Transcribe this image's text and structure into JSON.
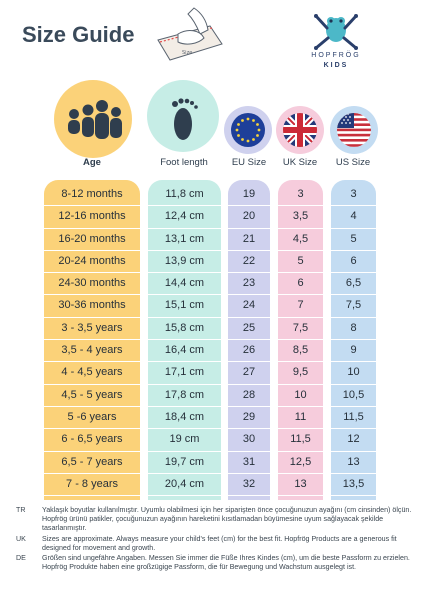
{
  "title": "Size Guide",
  "logo": {
    "brand": "HOPFRÖG",
    "sub": "KIDS"
  },
  "illustration": {
    "ruler_text": "Size"
  },
  "columns": {
    "age": "Age",
    "foot": "Foot length",
    "eu": "EU Size",
    "uk": "UK Size",
    "us": "US Size"
  },
  "colors": {
    "age": "#fbd279",
    "foot": "#c6ede6",
    "eu": "#cfd1ee",
    "uk": "#f6ccdc",
    "us": "#c3dcf2"
  },
  "rows": [
    {
      "age": "8-12 months",
      "foot": "11,8 cm",
      "eu": "19",
      "uk": "3",
      "us": "3"
    },
    {
      "age": "12-16 months",
      "foot": "12,4 cm",
      "eu": "20",
      "uk": "3,5",
      "us": "4"
    },
    {
      "age": "16-20 months",
      "foot": "13,1 cm",
      "eu": "21",
      "uk": "4,5",
      "us": "5"
    },
    {
      "age": "20-24 months",
      "foot": "13,9 cm",
      "eu": "22",
      "uk": "5",
      "us": "6"
    },
    {
      "age": "24-30 months",
      "foot": "14,4 cm",
      "eu": "23",
      "uk": "6",
      "us": "6,5"
    },
    {
      "age": "30-36 months",
      "foot": "15,1 cm",
      "eu": "24",
      "uk": "7",
      "us": "7,5"
    },
    {
      "age": "3 - 3,5 years",
      "foot": "15,8 cm",
      "eu": "25",
      "uk": "7,5",
      "us": "8"
    },
    {
      "age": "3,5 - 4 years",
      "foot": "16,4 cm",
      "eu": "26",
      "uk": "8,5",
      "us": "9"
    },
    {
      "age": "4 - 4,5 years",
      "foot": "17,1 cm",
      "eu": "27",
      "uk": "9,5",
      "us": "10"
    },
    {
      "age": "4,5 - 5 years",
      "foot": "17,8 cm",
      "eu": "28",
      "uk": "10",
      "us": "10,5"
    },
    {
      "age": "5 -6 years",
      "foot": "18,4 cm",
      "eu": "29",
      "uk": "11",
      "us": "11,5"
    },
    {
      "age": "6 - 6,5 years",
      "foot": "19 cm",
      "eu": "30",
      "uk": "11,5",
      "us": "12"
    },
    {
      "age": "6,5 - 7 years",
      "foot": "19,7 cm",
      "eu": "31",
      "uk": "12,5",
      "us": "13"
    },
    {
      "age": "7 - 8 years",
      "foot": "20,4 cm",
      "eu": "32",
      "uk": "13",
      "us": "13,5"
    }
  ],
  "notes": [
    {
      "code": "TR",
      "text": "Yaklaşık boyutlar kullanılmıştır. Uyumlu olabilmesi için her siparişten önce çocuğunuzun ayağını (cm cinsinden) ölçün. Hopfrög ürünü patikler, çocuğunuzun ayağının hareketini kısıtlamadan büyümesine uyum sağlayacak şekilde tasarlanmıştır."
    },
    {
      "code": "UK",
      "text": "Sizes are approximate. Always measure your child's feet (cm) for the best fit. Hopfrög Products are a generous fit designed for movement and growth."
    },
    {
      "code": "DE",
      "text": "Größen sind ungefähre Angaben. Messen Sie immer die Füße Ihres Kindes (cm), um die beste Passform zu erzielen. Hopfrög Produkte haben eine großzügige Passform, die für Bewegung und Wachstum ausgelegt ist."
    }
  ]
}
